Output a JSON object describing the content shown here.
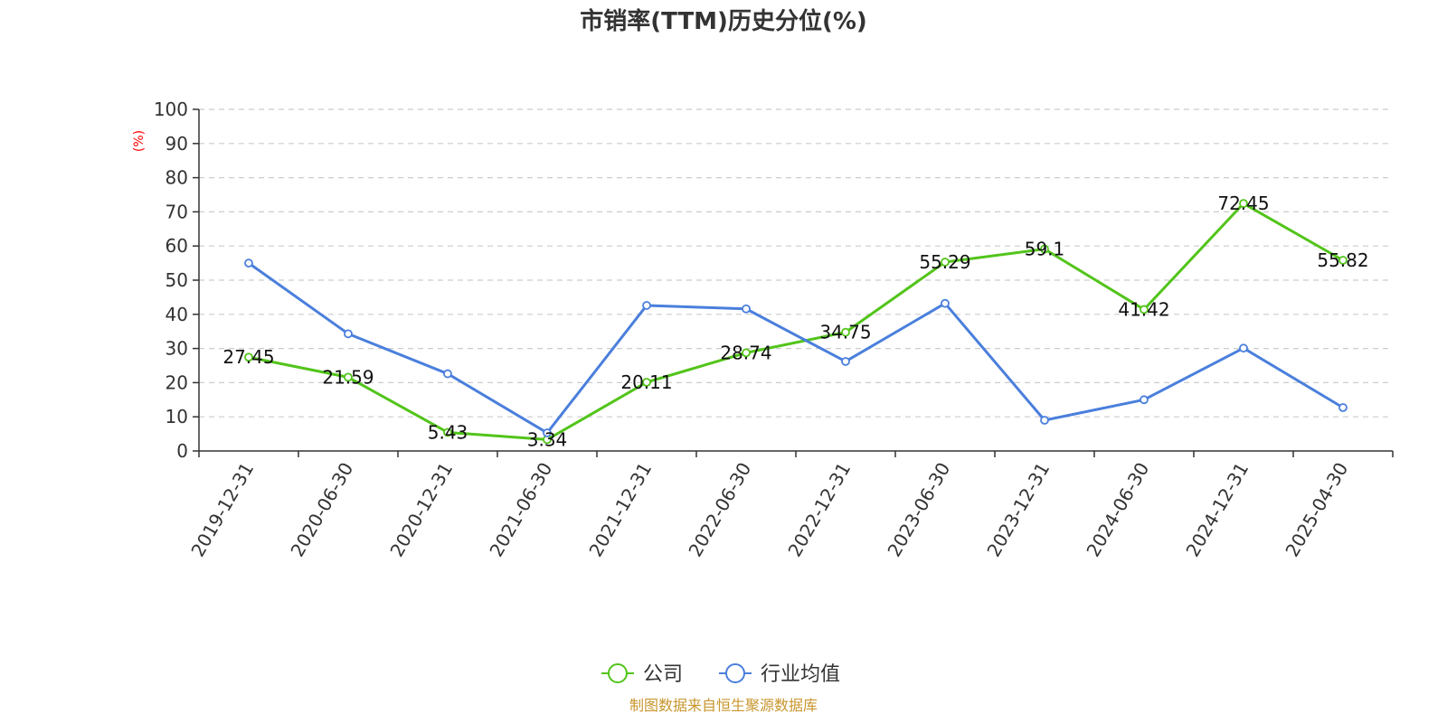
{
  "chart_data": {
    "type": "line",
    "title": "市销率(TTM)历史分位(%)",
    "ylabel": "(%)",
    "ylim": [
      0,
      100
    ],
    "yticks": [
      0,
      10,
      20,
      30,
      40,
      50,
      60,
      70,
      80,
      90,
      100
    ],
    "grid": true,
    "legend_position": "bottom",
    "categories": [
      "2019-12-31",
      "2020-06-30",
      "2020-12-31",
      "2021-06-30",
      "2021-12-31",
      "2022-06-30",
      "2022-12-31",
      "2023-06-30",
      "2023-12-31",
      "2024-06-30",
      "2024-12-31",
      "2025-04-30"
    ],
    "series": [
      {
        "name": "公司",
        "color": "#52c41a",
        "values": [
          27.45,
          21.59,
          5.43,
          3.34,
          20.11,
          28.74,
          34.75,
          55.29,
          59.1,
          41.42,
          72.45,
          55.82
        ],
        "data_labels": [
          "27.45",
          "21.59",
          "5.43",
          "3.34",
          "20.11",
          "28.74",
          "34.75",
          "55.29",
          "59.1",
          "41.42",
          "72.45",
          "55.82"
        ]
      },
      {
        "name": "行业均值",
        "color": "#4a7fdc",
        "values": [
          55,
          34.3,
          22.6,
          5.3,
          42.6,
          41.6,
          26.2,
          43.2,
          9.0,
          15.0,
          30.1,
          12.7
        ]
      }
    ],
    "source_text": "制图数据来自恒生聚源数据库",
    "colors": {
      "ylabel": "#ff0000",
      "source": "#c8962e",
      "grid": "#cccccc",
      "axis": "#333333"
    }
  }
}
